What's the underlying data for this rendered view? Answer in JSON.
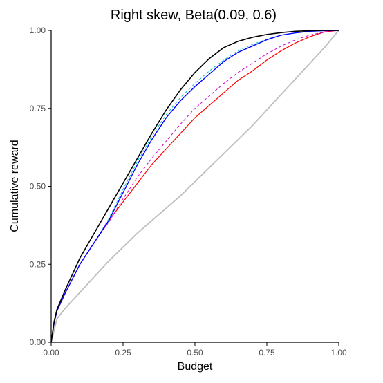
{
  "chart_data": {
    "type": "line",
    "title": "Right skew, Beta(0.09, 0.6)",
    "xlabel": "Budget",
    "ylabel": "Cumulative reward",
    "xlim": [
      0,
      1
    ],
    "ylim": [
      0,
      1
    ],
    "xticks": [
      "0.00",
      "0.25",
      "0.50",
      "0.75",
      "1.00"
    ],
    "yticks": [
      "0.00",
      "0.25",
      "0.50",
      "0.75",
      "1.00"
    ],
    "grid": false,
    "legend": "none",
    "series": [
      {
        "color": "#bdbdbd",
        "dash": "solid",
        "width": 1.8,
        "x": [
          0,
          0.02,
          0.05,
          0.1,
          0.15,
          0.2,
          0.25,
          0.3,
          0.35,
          0.4,
          0.45,
          0.5,
          0.55,
          0.6,
          0.65,
          0.7,
          0.75,
          0.8,
          0.85,
          0.9,
          0.95,
          1.0
        ],
        "y": [
          0,
          0.075,
          0.11,
          0.16,
          0.21,
          0.26,
          0.305,
          0.35,
          0.39,
          0.43,
          0.47,
          0.515,
          0.56,
          0.605,
          0.65,
          0.695,
          0.745,
          0.795,
          0.845,
          0.895,
          0.945,
          1.0
        ]
      },
      {
        "color": "#ff0000",
        "dash": "solid",
        "width": 1.2,
        "x": [
          0,
          0.01,
          0.02,
          0.05,
          0.1,
          0.15,
          0.2,
          0.25,
          0.3,
          0.35,
          0.4,
          0.45,
          0.5,
          0.55,
          0.6,
          0.65,
          0.7,
          0.75,
          0.8,
          0.85,
          0.9,
          0.95,
          1.0
        ],
        "y": [
          0,
          0.06,
          0.1,
          0.16,
          0.25,
          0.32,
          0.39,
          0.45,
          0.51,
          0.57,
          0.62,
          0.67,
          0.72,
          0.76,
          0.8,
          0.84,
          0.87,
          0.905,
          0.935,
          0.96,
          0.98,
          0.995,
          1.0
        ]
      },
      {
        "color": "#cc00cc",
        "dash": "dashed",
        "width": 1.0,
        "x": [
          0,
          0.01,
          0.02,
          0.05,
          0.1,
          0.15,
          0.2,
          0.25,
          0.3,
          0.35,
          0.4,
          0.45,
          0.5,
          0.55,
          0.6,
          0.65,
          0.7,
          0.75,
          0.8,
          0.85,
          0.9,
          0.95,
          1.0
        ],
        "y": [
          0,
          0.06,
          0.1,
          0.16,
          0.25,
          0.32,
          0.385,
          0.46,
          0.53,
          0.59,
          0.645,
          0.7,
          0.75,
          0.79,
          0.83,
          0.865,
          0.895,
          0.925,
          0.95,
          0.97,
          0.985,
          0.995,
          1.0
        ]
      },
      {
        "color": "#00bfbf",
        "dash": "dashed",
        "width": 1.0,
        "x": [
          0,
          0.01,
          0.02,
          0.05,
          0.1,
          0.15,
          0.2,
          0.25,
          0.3,
          0.35,
          0.4,
          0.45,
          0.5,
          0.55,
          0.6,
          0.65,
          0.7,
          0.75,
          0.8,
          0.85,
          0.9,
          0.95,
          1.0
        ],
        "y": [
          0,
          0.06,
          0.1,
          0.16,
          0.25,
          0.32,
          0.395,
          0.49,
          0.58,
          0.66,
          0.73,
          0.785,
          0.83,
          0.87,
          0.905,
          0.935,
          0.955,
          0.972,
          0.985,
          0.992,
          0.997,
          0.999,
          1.0
        ]
      },
      {
        "color": "#0000ff",
        "dash": "solid",
        "width": 1.4,
        "x": [
          0,
          0.01,
          0.02,
          0.05,
          0.1,
          0.15,
          0.2,
          0.25,
          0.3,
          0.35,
          0.4,
          0.45,
          0.5,
          0.55,
          0.6,
          0.65,
          0.7,
          0.75,
          0.8,
          0.85,
          0.9,
          0.95,
          1.0
        ],
        "y": [
          0,
          0.06,
          0.1,
          0.16,
          0.25,
          0.32,
          0.39,
          0.48,
          0.57,
          0.65,
          0.72,
          0.775,
          0.82,
          0.86,
          0.9,
          0.93,
          0.95,
          0.97,
          0.985,
          0.992,
          0.997,
          0.999,
          1.0
        ]
      },
      {
        "color": "#000000",
        "dash": "solid",
        "width": 1.6,
        "x": [
          0,
          0.01,
          0.02,
          0.05,
          0.1,
          0.15,
          0.2,
          0.25,
          0.3,
          0.35,
          0.4,
          0.45,
          0.5,
          0.55,
          0.6,
          0.65,
          0.7,
          0.75,
          0.8,
          0.85,
          0.9,
          0.95,
          1.0
        ],
        "y": [
          0,
          0.065,
          0.105,
          0.17,
          0.27,
          0.35,
          0.43,
          0.51,
          0.59,
          0.67,
          0.745,
          0.81,
          0.865,
          0.91,
          0.945,
          0.965,
          0.978,
          0.987,
          0.993,
          0.997,
          0.999,
          1.0,
          1.0
        ]
      }
    ]
  }
}
